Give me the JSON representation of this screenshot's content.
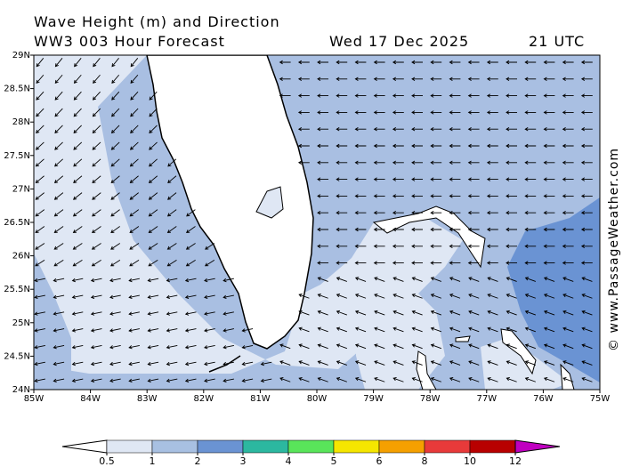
{
  "chart_data": {
    "type": "map",
    "title": "Wave Height (m) and Direction",
    "subtitle": "WW3 003 Hour Forecast",
    "date": "Wed 17 Dec 2025",
    "time": "21 UTC",
    "watermark": "© www.PassageWeather.com",
    "xlim": [
      -85,
      -75
    ],
    "ylim": [
      24,
      29
    ],
    "xticks": [
      {
        "value": -85,
        "label": "85W"
      },
      {
        "value": -84,
        "label": "84W"
      },
      {
        "value": -83,
        "label": "83W"
      },
      {
        "value": -82,
        "label": "82W"
      },
      {
        "value": -81,
        "label": "81W"
      },
      {
        "value": -80,
        "label": "80W"
      },
      {
        "value": -79,
        "label": "79W"
      },
      {
        "value": -78,
        "label": "78W"
      },
      {
        "value": -77,
        "label": "77W"
      },
      {
        "value": -76,
        "label": "76W"
      },
      {
        "value": -75,
        "label": "75W"
      }
    ],
    "yticks": [
      {
        "value": 24,
        "label": "24N"
      },
      {
        "value": 24.5,
        "label": "24.5N"
      },
      {
        "value": 25,
        "label": "25N"
      },
      {
        "value": 25.5,
        "label": "25.5N"
      },
      {
        "value": 26,
        "label": "26N"
      },
      {
        "value": 26.5,
        "label": "26.5N"
      },
      {
        "value": 27,
        "label": "27N"
      },
      {
        "value": 27.5,
        "label": "27.5N"
      },
      {
        "value": 28,
        "label": "28N"
      },
      {
        "value": 28.5,
        "label": "28.5N"
      },
      {
        "value": 29,
        "label": "29N"
      }
    ],
    "colorbar": {
      "levels": [
        0.5,
        1,
        2,
        3,
        4,
        5,
        6,
        8,
        10,
        12
      ],
      "colors": [
        "#ffffff",
        "#dfe7f4",
        "#a8c0e2",
        "#6a93d3",
        "#2cb8a0",
        "#59e55a",
        "#f5e600",
        "#f5a000",
        "#e83a3a",
        "#b80000",
        "#c000c0"
      ]
    }
  }
}
